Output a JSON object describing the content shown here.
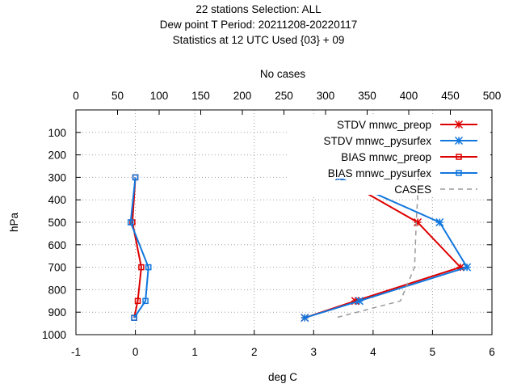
{
  "chart_data": {
    "type": "line",
    "title_lines": [
      "22 stations Selection: ALL",
      "Dew point T  Period: 20211208-20220117",
      "Statistics at 12 UTC  Used {03} + 09"
    ],
    "x2label": "No cases",
    "xlabel": "deg C",
    "ylabel": "hPa",
    "xlim": [
      -1,
      6
    ],
    "x2lim": [
      0,
      500
    ],
    "ylim": [
      1000,
      0
    ],
    "x_ticks": [
      "-1",
      "0",
      "1",
      "2",
      "3",
      "4",
      "5",
      "6"
    ],
    "x2_ticks": [
      "0",
      "50",
      "100",
      "150",
      "200",
      "250",
      "300",
      "350",
      "400",
      "450",
      "500"
    ],
    "y_ticks": [
      "100",
      "200",
      "300",
      "400",
      "500",
      "600",
      "700",
      "800",
      "900",
      "1000"
    ],
    "grid": true,
    "legend_position": "top-right",
    "series": [
      {
        "name": "STDV mnwc_preop",
        "color": "#dd0000",
        "marker": "x-star",
        "axis": "bottom",
        "points": [
          [
            3.42,
            300
          ],
          [
            4.75,
            500
          ],
          [
            5.47,
            700
          ],
          [
            3.7,
            850
          ],
          [
            2.85,
            925
          ]
        ]
      },
      {
        "name": "STDV mnwc_pysurfex",
        "color": "#1177dd",
        "marker": "x-star",
        "axis": "bottom",
        "points": [
          [
            3.42,
            300
          ],
          [
            5.12,
            500
          ],
          [
            5.58,
            700
          ],
          [
            3.77,
            850
          ],
          [
            2.85,
            925
          ]
        ]
      },
      {
        "name": "BIAS mnwc_preop",
        "color": "#dd0000",
        "marker": "square",
        "axis": "bottom",
        "points": [
          [
            0.0,
            300
          ],
          [
            -0.05,
            500
          ],
          [
            0.1,
            700
          ],
          [
            0.04,
            850
          ],
          [
            -0.02,
            925
          ]
        ]
      },
      {
        "name": "BIAS mnwc_pysurfex",
        "color": "#1177dd",
        "marker": "square",
        "axis": "bottom",
        "points": [
          [
            0.0,
            300
          ],
          [
            -0.08,
            500
          ],
          [
            0.22,
            700
          ],
          [
            0.17,
            850
          ],
          [
            -0.02,
            925
          ]
        ]
      },
      {
        "name": "CASES",
        "color": "#999999",
        "marker": "none",
        "dashed": true,
        "axis": "top",
        "points": [
          [
            412,
            300
          ],
          [
            409,
            500
          ],
          [
            407,
            700
          ],
          [
            390,
            850
          ],
          [
            312,
            925
          ]
        ]
      }
    ]
  }
}
